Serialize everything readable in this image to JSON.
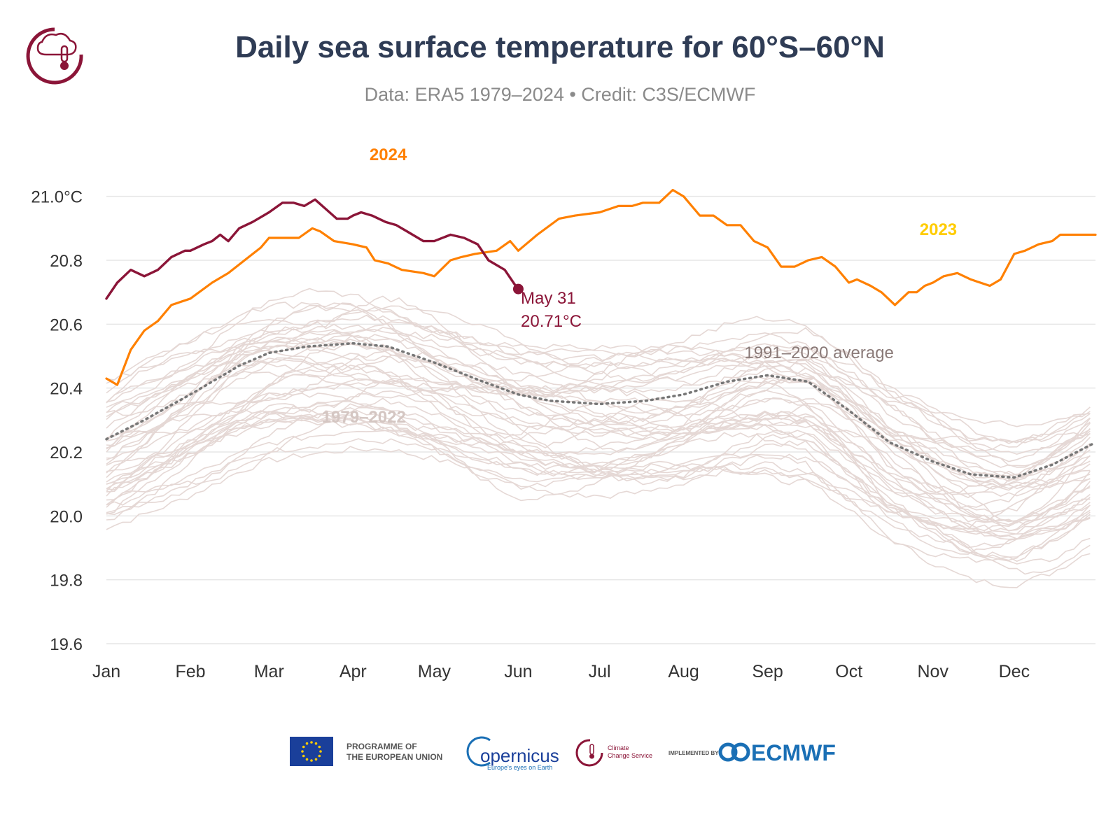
{
  "header": {
    "title": "Daily sea surface temperature for 60°S–60°N",
    "subtitle": "Data: ERA5 1979–2024 • Credit: C3S/ECMWF"
  },
  "colors": {
    "y2024": "#8b1538",
    "y2023": "#ff8000",
    "y2022": "#ffcc00",
    "past_years": "#e5d8d5",
    "average": "#777777",
    "title": "#2f3c55",
    "grid": "#e6e6e6"
  },
  "chart_data": {
    "type": "line",
    "title": "Daily sea surface temperature for 60°S–60°N",
    "subtitle": "Data: ERA5 1979–2024 • Credit: C3S/ECMWF",
    "xlabel": "",
    "ylabel": "",
    "x_unit": "day of year",
    "xlim": [
      1,
      366
    ],
    "ylim": [
      19.6,
      21.1
    ],
    "grid": true,
    "y_ticks": [
      19.6,
      19.8,
      20.0,
      20.2,
      20.4,
      20.6,
      20.8,
      21.0
    ],
    "y_tick_labels": [
      "19.6",
      "19.8",
      "20.0",
      "20.2",
      "20.4",
      "20.6",
      "20.8",
      "21.0°C"
    ],
    "month_ticks": [
      {
        "label": "Jan",
        "day": 1
      },
      {
        "label": "Feb",
        "day": 32
      },
      {
        "label": "Mar",
        "day": 61
      },
      {
        "label": "Apr",
        "day": 92
      },
      {
        "label": "May",
        "day": 122
      },
      {
        "label": "Jun",
        "day": 153
      },
      {
        "label": "Jul",
        "day": 183
      },
      {
        "label": "Aug",
        "day": 214
      },
      {
        "label": "Sep",
        "day": 245
      },
      {
        "label": "Oct",
        "day": 275
      },
      {
        "label": "Nov",
        "day": 306
      },
      {
        "label": "Dec",
        "day": 336
      }
    ],
    "series": [
      {
        "name": "1991–2020 average",
        "style": "dotted",
        "x": [
          1,
          15,
          32,
          50,
          61,
          75,
          92,
          105,
          122,
          140,
          153,
          165,
          183,
          200,
          214,
          230,
          245,
          260,
          275,
          290,
          306,
          320,
          336,
          350,
          366
        ],
        "y": [
          20.24,
          20.3,
          20.38,
          20.47,
          20.51,
          20.53,
          20.54,
          20.53,
          20.48,
          20.42,
          20.38,
          20.36,
          20.35,
          20.36,
          20.38,
          20.42,
          20.44,
          20.42,
          20.33,
          20.23,
          20.17,
          20.13,
          20.12,
          20.16,
          20.23
        ]
      },
      {
        "name": "2023",
        "x": [
          1,
          5,
          10,
          15,
          20,
          25,
          32,
          40,
          46,
          52,
          58,
          61,
          68,
          72,
          77,
          80,
          85,
          92,
          97,
          100,
          105,
          110,
          118,
          122,
          128,
          132,
          137,
          145,
          150,
          153,
          160,
          168,
          174,
          183,
          190,
          195,
          199,
          205,
          210,
          214,
          220,
          225,
          230,
          235,
          240,
          245,
          250,
          255,
          260,
          265,
          270,
          275,
          278,
          283,
          287,
          292,
          297,
          300,
          303,
          306,
          310,
          315,
          320,
          327,
          331,
          336,
          340,
          345,
          350,
          353,
          358,
          363,
          366
        ],
        "y": [
          20.43,
          20.41,
          20.52,
          20.58,
          20.61,
          20.66,
          20.68,
          20.73,
          20.76,
          20.8,
          20.84,
          20.87,
          20.87,
          20.87,
          20.9,
          20.89,
          20.86,
          20.85,
          20.84,
          20.8,
          20.79,
          20.77,
          20.76,
          20.75,
          20.8,
          20.81,
          20.82,
          20.83,
          20.86,
          20.83,
          20.88,
          20.93,
          20.94,
          20.95,
          20.97,
          20.97,
          20.98,
          20.98,
          21.02,
          21.0,
          20.94,
          20.94,
          20.91,
          20.91,
          20.86,
          20.84,
          20.78,
          20.78,
          20.8,
          20.81,
          20.78,
          20.73,
          20.74,
          20.72,
          20.7,
          20.66,
          20.7,
          20.7,
          20.72,
          20.73,
          20.75,
          20.76,
          20.74,
          20.72,
          20.74,
          20.82,
          20.83,
          20.85,
          20.86,
          20.88,
          20.88,
          20.88,
          20.88
        ]
      },
      {
        "name": "2024",
        "x": [
          1,
          5,
          10,
          15,
          20,
          25,
          30,
          32,
          37,
          40,
          43,
          46,
          50,
          55,
          61,
          66,
          70,
          74,
          78,
          82,
          86,
          90,
          92,
          95,
          99,
          104,
          108,
          112,
          118,
          122,
          128,
          133,
          138,
          142,
          148,
          152
        ],
        "y": [
          20.68,
          20.73,
          20.77,
          20.75,
          20.77,
          20.81,
          20.83,
          20.83,
          20.85,
          20.86,
          20.88,
          20.86,
          20.9,
          20.92,
          20.95,
          20.98,
          20.98,
          20.97,
          20.99,
          20.96,
          20.93,
          20.93,
          20.94,
          20.95,
          20.94,
          20.92,
          20.91,
          20.89,
          20.86,
          20.86,
          20.88,
          20.87,
          20.85,
          20.8,
          20.77,
          20.72
        ]
      },
      {
        "name": "2024 last value",
        "x": [
          153
        ],
        "y": [
          20.71
        ]
      }
    ],
    "annotations": {
      "label_2024": "2024",
      "label_2023": "2023",
      "label_past": "1979–2022",
      "label_average": "1991–2020 average",
      "last_date": "May 31",
      "last_value": "20.71°C"
    }
  },
  "footer": {
    "programme_line1": "PROGRAMME OF",
    "programme_line2": "THE EUROPEAN UNION",
    "copernicus": "opernicus",
    "copernicus_tagline": "Europe's eyes on Earth",
    "c3s_line1": "Climate",
    "c3s_line2": "Change Service",
    "implemented_by": "IMPLEMENTED BY",
    "ecmwf": "ECMWF"
  }
}
